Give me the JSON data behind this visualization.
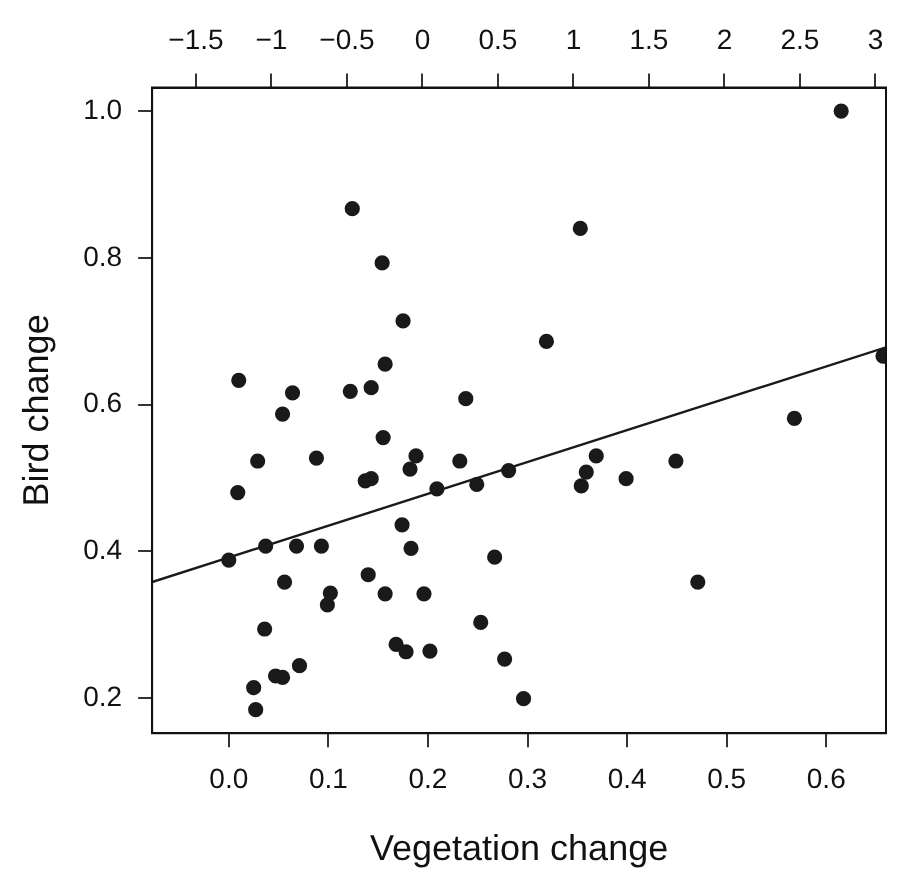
{
  "chart_data": {
    "type": "scatter",
    "xlabel": "Vegetation change",
    "ylabel": "Bird change",
    "xlim": [
      -0.077,
      0.66
    ],
    "xticks": [
      {
        "value": 0,
        "label": "0.0"
      },
      0.1,
      0.2,
      0.3,
      0.4,
      0.5,
      0.6
    ],
    "x2lim": [
      -1.79,
      3.07
    ],
    "x2ticks": [
      {
        "value": -1.5,
        "label": "−1.5"
      },
      {
        "value": -1,
        "label": "−1"
      },
      {
        "value": -0.5,
        "label": "−0.5"
      },
      0,
      0.5,
      1,
      1.5,
      2,
      2.5,
      3
    ],
    "ylim": [
      0.152,
      1.032
    ],
    "yticks": [
      0.2,
      0.4,
      0.6,
      0.8,
      {
        "value": 1,
        "label": "1.0"
      }
    ],
    "grid": false,
    "legend": false,
    "series": [
      {
        "marker": "circle",
        "color": "#1a1a1a",
        "x": [
          0.124,
          0.154,
          0.175,
          0.01,
          0.064,
          0.122,
          0.143,
          0.157,
          0.238,
          0.054,
          0.155,
          0.029,
          0.088,
          0.188,
          0.182,
          0.232,
          0.281,
          0.009,
          0.137,
          0.143,
          0.209,
          0.249,
          0.174,
          0.183,
          0.037,
          0.068,
          0.093,
          0.0,
          0.267,
          0.056,
          0.14,
          0.102,
          0.099,
          0.157,
          0.196,
          0.036,
          0.253,
          0.168,
          0.178,
          0.202,
          0.277,
          0.047,
          0.054,
          0.071,
          0.025,
          0.027,
          0.296,
          0.354,
          0.359,
          0.369,
          0.399,
          0.449,
          0.471,
          0.568,
          0.615,
          0.353,
          0.319,
          0.657
        ],
        "values": [
          0.867,
          0.793,
          0.714,
          0.633,
          0.616,
          0.618,
          0.623,
          0.655,
          0.608,
          0.587,
          0.555,
          0.523,
          0.527,
          0.53,
          0.512,
          0.523,
          0.51,
          0.48,
          0.496,
          0.499,
          0.485,
          0.491,
          0.436,
          0.404,
          0.407,
          0.407,
          0.407,
          0.388,
          0.392,
          0.358,
          0.368,
          0.343,
          0.327,
          0.342,
          0.342,
          0.294,
          0.303,
          0.273,
          0.263,
          0.264,
          0.253,
          0.23,
          0.228,
          0.244,
          0.214,
          0.184,
          0.199,
          0.489,
          0.508,
          0.53,
          0.499,
          0.523,
          0.358,
          0.581,
          1.0,
          0.84,
          0.686,
          0.666
        ]
      },
      {
        "type": "line",
        "marker": "none",
        "color": "#1a1a1a",
        "x": [
          -0.077,
          0.66
        ],
        "values": [
          0.358,
          0.678
        ]
      }
    ]
  }
}
